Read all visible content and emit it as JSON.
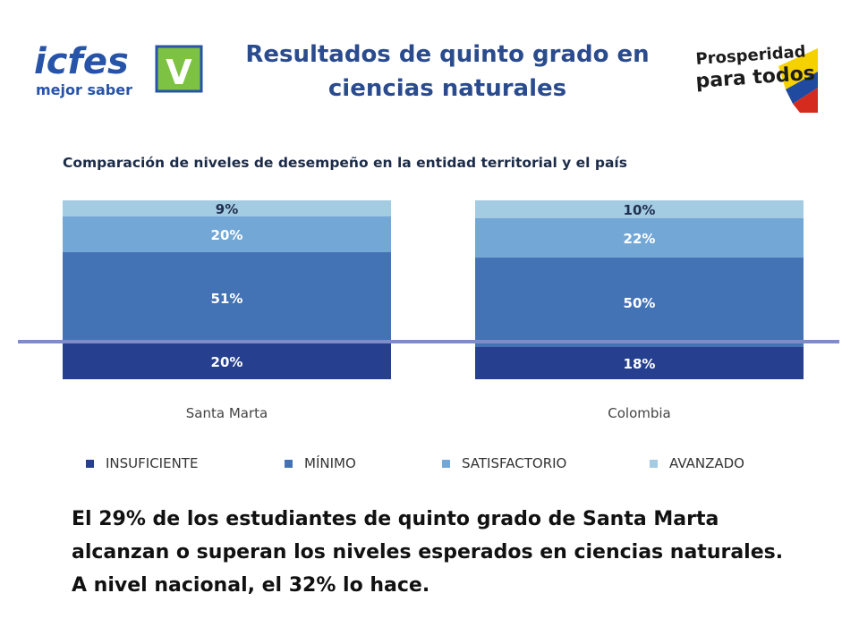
{
  "header": {
    "title_line1": "Resultados de quinto grado en",
    "title_line2": "ciencias naturales",
    "left_logo": {
      "word": "icfes",
      "tagline": "mejor saber",
      "mark": "V"
    },
    "right_logo": {
      "line1": "Prosperidad",
      "line2": "para todos"
    }
  },
  "chart_data": {
    "type": "bar",
    "stacked": true,
    "title": "Comparación de niveles de desempeño en la entidad territorial y el país",
    "categories": [
      "Santa Marta",
      "Colombia"
    ],
    "series": [
      {
        "name": "INSUFICIENTE",
        "values": [
          20,
          18
        ],
        "labels": [
          "20%",
          "18%"
        ],
        "color": "#26408f"
      },
      {
        "name": "MÍNIMO",
        "values": [
          51,
          50
        ],
        "labels": [
          "51%",
          "50%"
        ],
        "color": "#4473b5"
      },
      {
        "name": "SATISFACTORIO",
        "values": [
          20,
          22
        ],
        "labels": [
          "20%",
          "22%"
        ],
        "color": "#73a7d6"
      },
      {
        "name": "AVANZADO",
        "values": [
          9,
          10
        ],
        "labels": [
          "9%",
          "10%"
        ],
        "color": "#a3cbe2"
      }
    ],
    "baseline_color": "#7f8cc8",
    "legend_position": "bottom",
    "grid": false
  },
  "conclusion": {
    "line1": "El 29% de los estudiantes de quinto grado de Santa Marta",
    "line2": "alcanzan o superan los niveles esperados en ciencias naturales.",
    "line3": "A nivel nacional, el 32% lo hace."
  }
}
